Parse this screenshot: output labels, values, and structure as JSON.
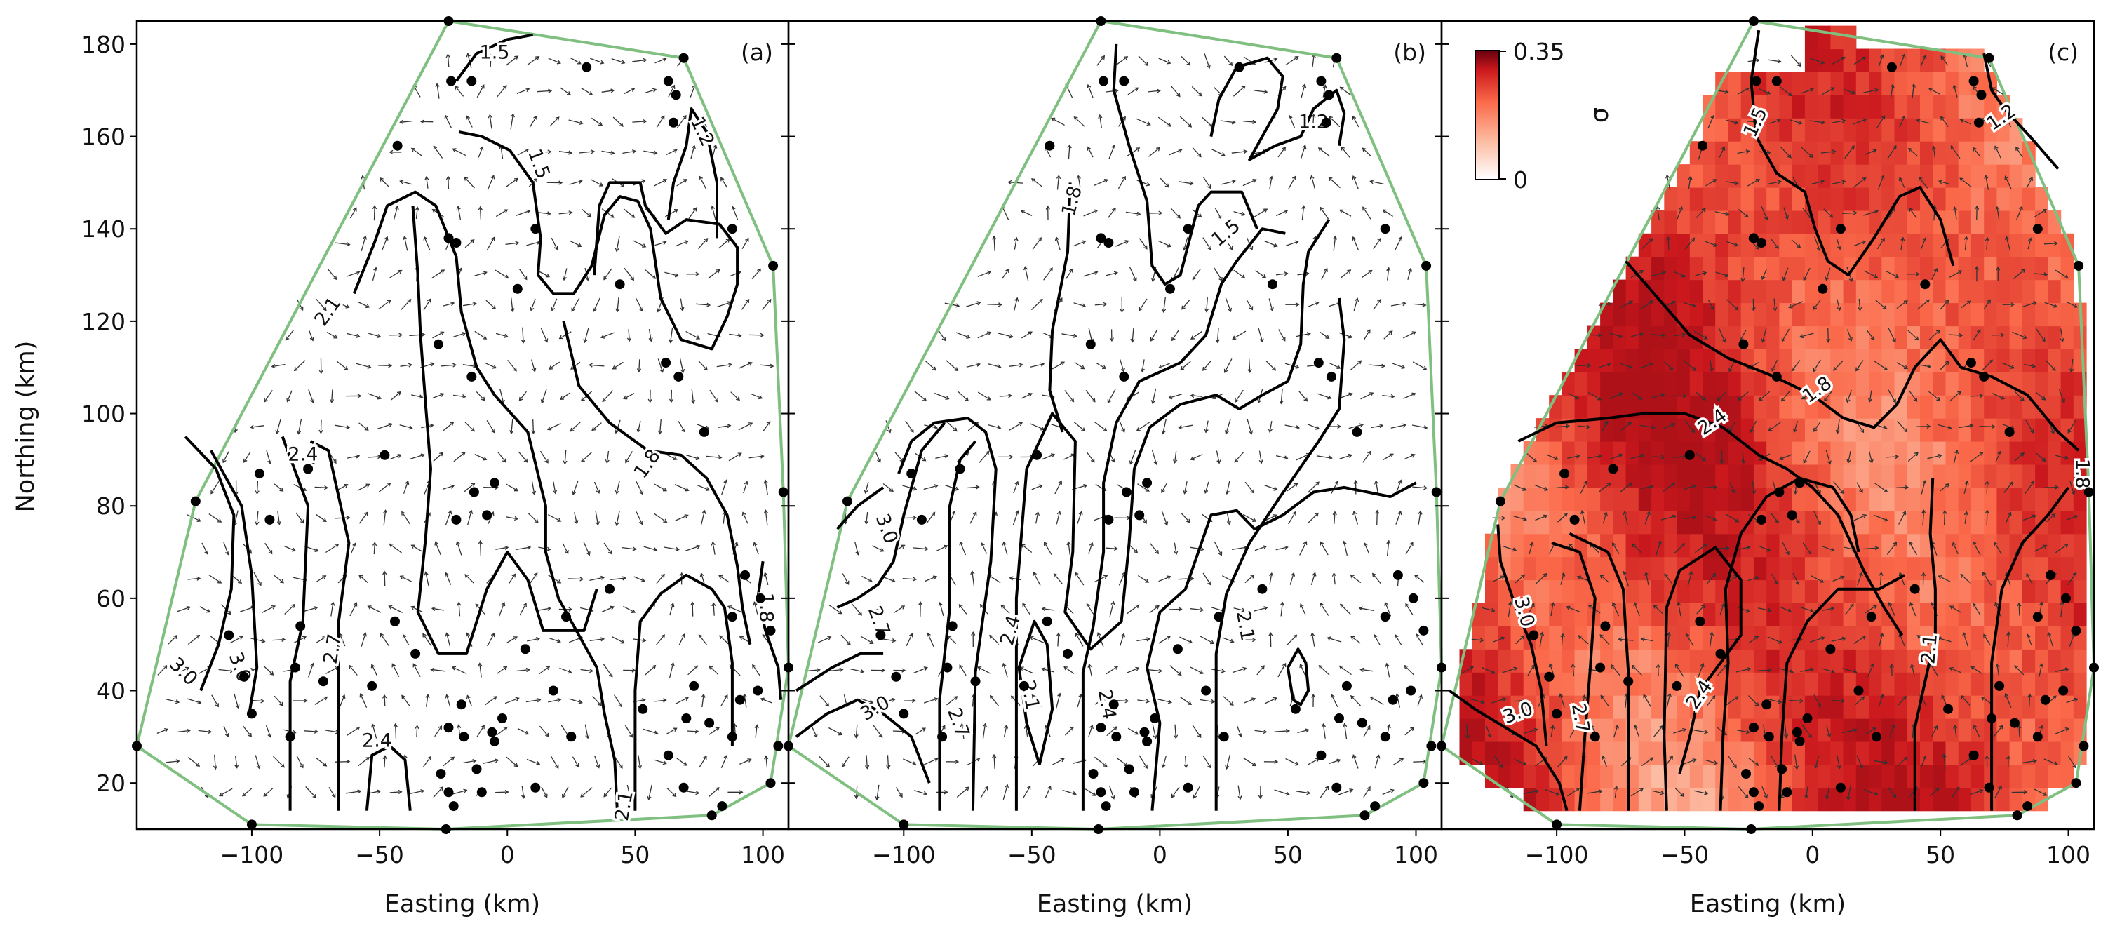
{
  "figure": {
    "ylabel": "Northing (km)",
    "xlabel": "Easting (km)"
  },
  "chart_data": [
    {
      "type": "contour",
      "panel_label": "(a)",
      "xlabel": "Easting (km)",
      "ylabel": "Northing (km)",
      "xlim": [
        -145,
        110
      ],
      "ylim": [
        10,
        185
      ],
      "xticks": [
        -100,
        -50,
        0,
        50,
        100
      ],
      "yticks": [
        20,
        40,
        60,
        80,
        100,
        120,
        140,
        160,
        180
      ],
      "contour_labels": [
        {
          "text": "1.5",
          "x": -5,
          "y": 178,
          "angle": 0
        },
        {
          "text": "1.5",
          "x": 12,
          "y": 154,
          "angle": 70
        },
        {
          "text": "1.2",
          "x": 76,
          "y": 161,
          "angle": 65
        },
        {
          "text": "2.1",
          "x": -70,
          "y": 122,
          "angle": -55
        },
        {
          "text": "2.4",
          "x": -80,
          "y": 91,
          "angle": 0
        },
        {
          "text": "1.8",
          "x": 55,
          "y": 89,
          "angle": -55
        },
        {
          "text": "1.8",
          "x": 101,
          "y": 58,
          "angle": 90
        },
        {
          "text": "3.0",
          "x": -127,
          "y": 44,
          "angle": 45
        },
        {
          "text": "3.0",
          "x": -105,
          "y": 45,
          "angle": 70
        },
        {
          "text": "2.7",
          "x": -68,
          "y": 49,
          "angle": -80
        },
        {
          "text": "2.4",
          "x": -51,
          "y": 29,
          "angle": 0
        },
        {
          "text": "2.1",
          "x": 46,
          "y": 15,
          "angle": -80
        }
      ]
    },
    {
      "type": "contour",
      "panel_label": "(b)",
      "xlabel": "Easting (km)",
      "xlim": [
        -145,
        110
      ],
      "ylim": [
        10,
        185
      ],
      "xticks": [
        -100,
        -50,
        0,
        50,
        100
      ],
      "contour_labels": [
        {
          "text": "1.2",
          "x": 60,
          "y": 163,
          "angle": 0
        },
        {
          "text": "1.8",
          "x": -34,
          "y": 146,
          "angle": -75
        },
        {
          "text": "1.5",
          "x": 26,
          "y": 139,
          "angle": -40
        },
        {
          "text": "3.0",
          "x": -107,
          "y": 75,
          "angle": 70
        },
        {
          "text": "2.7",
          "x": -110,
          "y": 55,
          "angle": 70
        },
        {
          "text": "2.4",
          "x": -58,
          "y": 53,
          "angle": -75
        },
        {
          "text": "2.1",
          "x": 33,
          "y": 54,
          "angle": 80
        },
        {
          "text": "2.1",
          "x": -51,
          "y": 39,
          "angle": 80
        },
        {
          "text": "2.4",
          "x": -21,
          "y": 37,
          "angle": 80
        },
        {
          "text": "3.0",
          "x": -111,
          "y": 36,
          "angle": -30
        },
        {
          "text": "2.7",
          "x": -79,
          "y": 33,
          "angle": 70
        }
      ]
    },
    {
      "type": "heatmap",
      "panel_label": "(c)",
      "xlabel": "Easting (km)",
      "xlim": [
        -145,
        110
      ],
      "ylim": [
        10,
        185
      ],
      "xticks": [
        -100,
        -50,
        0,
        50,
        100
      ],
      "colorbar": {
        "label": "σ",
        "min": 0,
        "max": 0.35,
        "tick_labels": [
          "0.35",
          "0"
        ],
        "colors": [
          "#ffffff",
          "#fcbba1",
          "#fb6a4a",
          "#cb181d",
          "#67000d"
        ]
      },
      "contour_labels": [
        {
          "text": "1.5",
          "x": -22,
          "y": 163,
          "angle": -65
        },
        {
          "text": "1.2",
          "x": 74,
          "y": 164,
          "angle": -35
        },
        {
          "text": "1.8",
          "x": 2,
          "y": 105,
          "angle": -35
        },
        {
          "text": "2.4",
          "x": -39,
          "y": 98,
          "angle": -35
        },
        {
          "text": "1.8",
          "x": 105,
          "y": 87,
          "angle": 90
        },
        {
          "text": "3.0",
          "x": -113,
          "y": 57,
          "angle": 75
        },
        {
          "text": "2.1",
          "x": 46,
          "y": 49,
          "angle": -85
        },
        {
          "text": "2.4",
          "x": -44,
          "y": 39,
          "angle": -55
        },
        {
          "text": "3.0",
          "x": -115,
          "y": 35,
          "angle": -20
        },
        {
          "text": "2.7",
          "x": -91,
          "y": 34,
          "angle": 80
        }
      ]
    }
  ]
}
